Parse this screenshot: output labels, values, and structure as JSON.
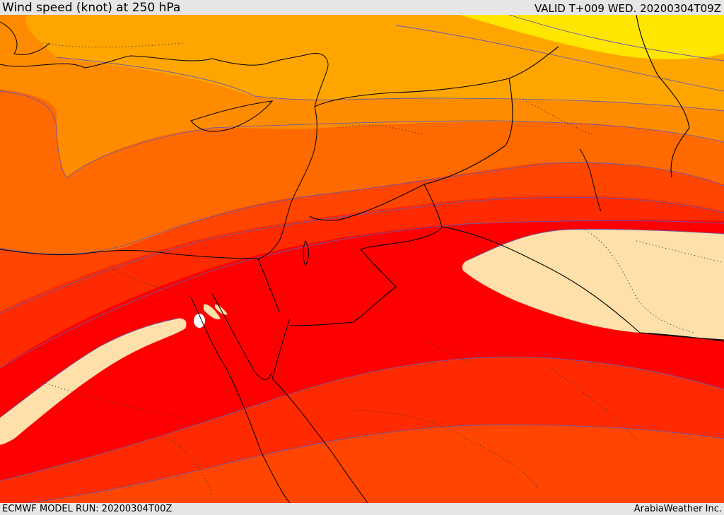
{
  "header": {
    "title": "Wind speed (knot) at 250 hPa",
    "valid": "VALID T+009 WED. 20200304T09Z"
  },
  "footer": {
    "model_run": "ECMWF MODEL RUN: 20200304T00Z",
    "credit": "ArabiaWeather Inc."
  },
  "colors": {
    "background": "#e6e6e6",
    "band_yellow": "#ffe600",
    "band_yellow_orange": "#ffc400",
    "band_light_orange": "#ffa500",
    "band_orange": "#ff8c00",
    "band_dark_orange": "#ff6a00",
    "band_red_orange": "#ff4500",
    "band_orange_red": "#ff2a00",
    "band_red": "#ff0000",
    "jet_core": "#ffe0aa",
    "contour_line": "#6a5aa6"
  }
}
